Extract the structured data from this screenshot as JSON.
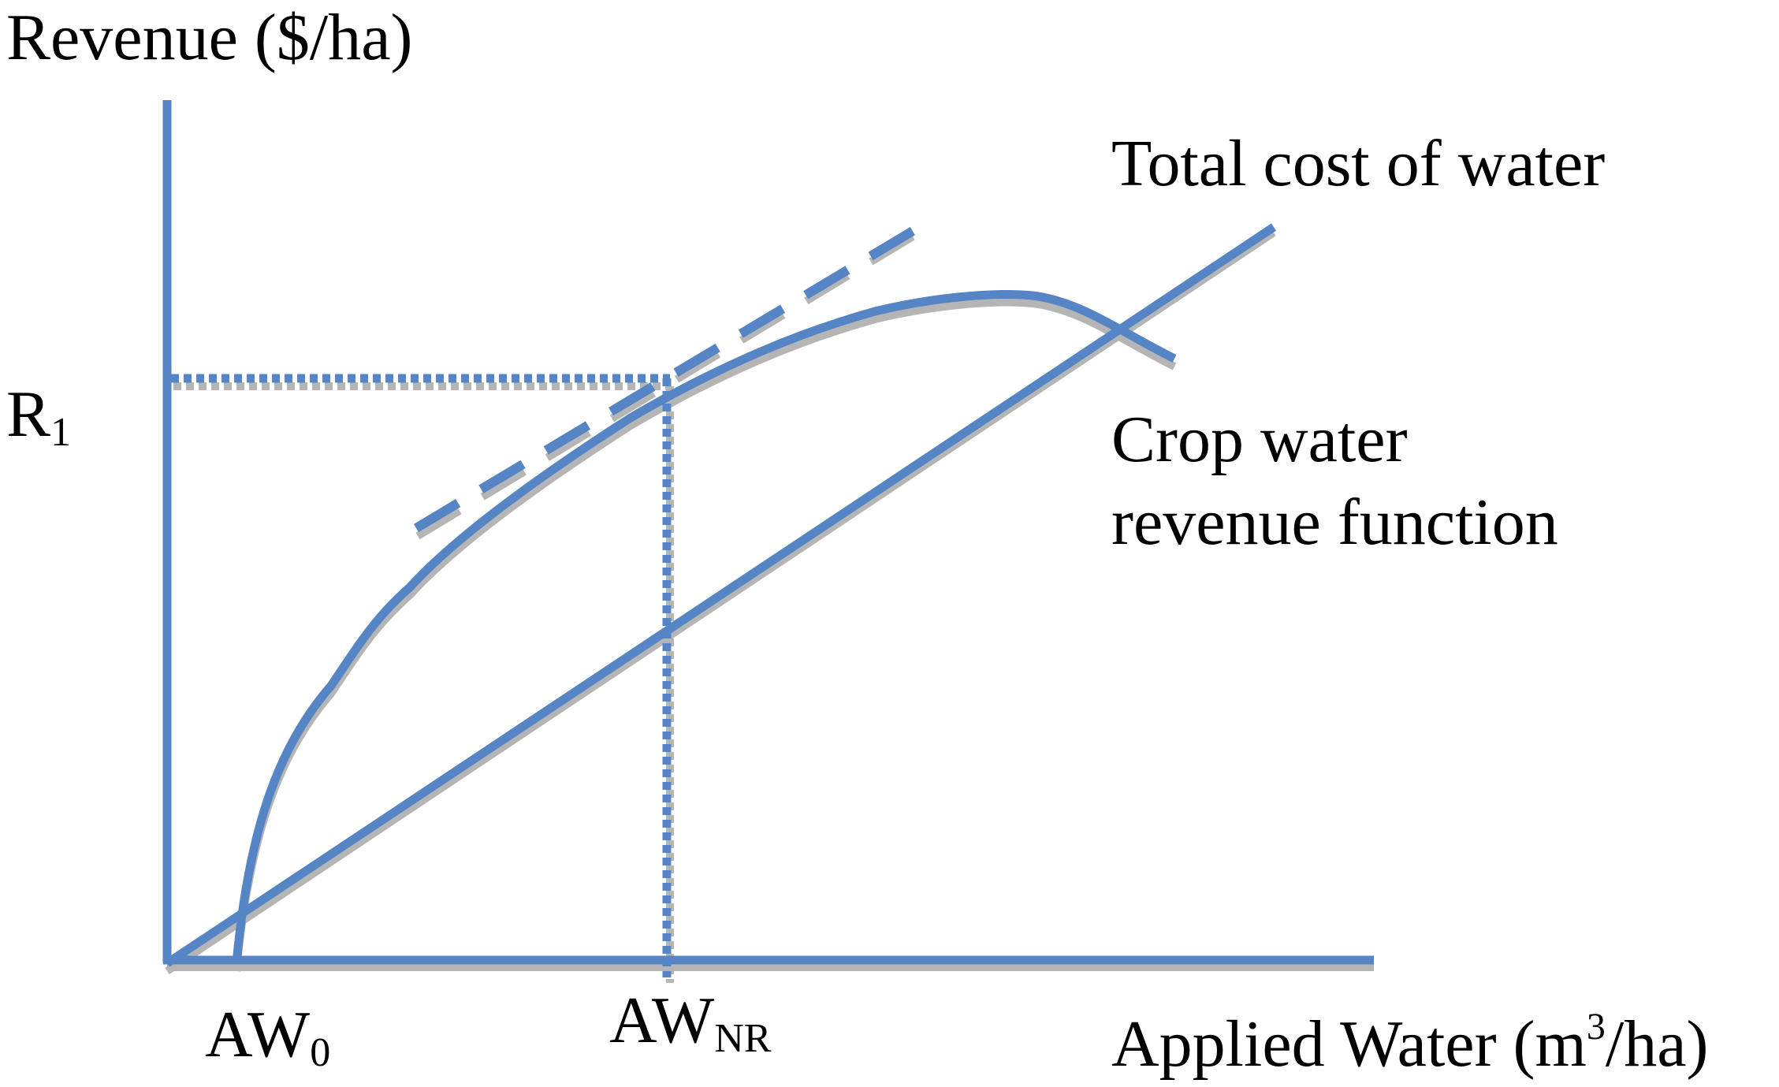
{
  "diagram": {
    "y_axis_label": "Revenue ($/ha)",
    "x_axis_label": {
      "pre": "Applied Water (m",
      "sup": "3",
      "post": "/ha)"
    },
    "r1_label": {
      "main": "R",
      "sub": "1"
    },
    "aw0_label": {
      "main": "AW",
      "sub": "0"
    },
    "awnr_label": {
      "main": "AW",
      "sub": "NR"
    },
    "cost_line_label": "Total cost of water",
    "revenue_curve_label": {
      "line1": "Crop water",
      "line2": "revenue function"
    },
    "colors": {
      "line": "#5585c4",
      "shadow": "#b5b5b5",
      "text": "#000000"
    }
  }
}
